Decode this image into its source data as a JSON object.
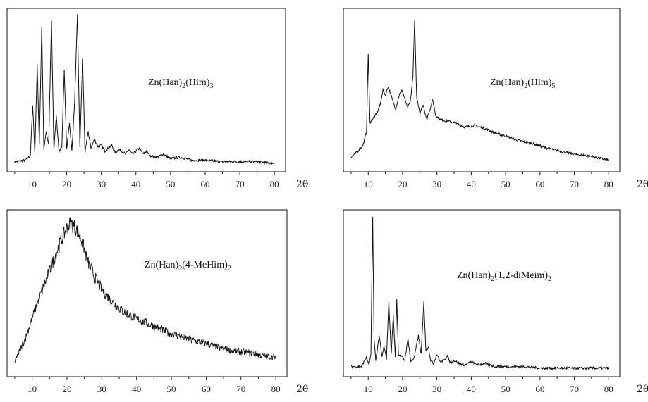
{
  "chart_data": [
    {
      "type": "line",
      "annotation": {
        "formula": "Zn(Han)",
        "subs": [
          "2",
          "3"
        ],
        "parts": [
          "(Him)"
        ]
      },
      "xlabel": "2θ",
      "xlim": [
        4,
        82
      ],
      "ylim": [
        0,
        100
      ],
      "xticks": [
        10,
        20,
        30,
        40,
        50,
        60,
        70,
        80
      ],
      "x": [
        5,
        8,
        9.5,
        10.2,
        10.8,
        11.5,
        12.1,
        12.8,
        13.4,
        14.1,
        14.8,
        15.6,
        16.3,
        17.0,
        17.8,
        18.6,
        19.3,
        20.0,
        20.8,
        21.5,
        22.3,
        23.1,
        23.8,
        24.6,
        25.3,
        26.2,
        27.0,
        28.0,
        29.0,
        30.0,
        31.0,
        32.0,
        33.0,
        34.0,
        35.0,
        36.0,
        37.0,
        38.0,
        39.0,
        40.0,
        41.0,
        42.0,
        43.0,
        44.0,
        46.0,
        48.0,
        50.0,
        53.0,
        56.0,
        60.0,
        65.0,
        70.0,
        75.0,
        80.0
      ],
      "y": [
        2,
        3,
        6,
        40,
        8,
        66,
        14,
        91,
        10,
        22,
        13,
        96,
        10,
        32,
        9,
        12,
        63,
        10,
        28,
        9,
        42,
        99,
        12,
        70,
        8,
        22,
        11,
        17,
        12,
        13,
        9,
        11,
        13,
        8,
        10,
        9,
        7,
        10,
        7,
        9,
        11,
        7,
        9,
        6,
        5,
        7,
        4,
        5,
        3,
        3,
        2,
        2,
        2,
        1
      ]
    },
    {
      "type": "line",
      "annotation": {
        "formula": "Zn(Han)",
        "subs": [
          "2",
          "5"
        ],
        "parts": [
          "(Him)"
        ]
      },
      "xlabel": "2θ",
      "xlim": [
        4,
        82
      ],
      "ylim": [
        0,
        100
      ],
      "xticks": [
        10,
        20,
        30,
        40,
        50,
        60,
        70,
        80
      ],
      "x": [
        5,
        7,
        8.5,
        9.5,
        10.0,
        10.5,
        11.5,
        12.5,
        13.5,
        14.3,
        15.0,
        15.8,
        16.4,
        17.2,
        18.0,
        19.0,
        19.8,
        20.6,
        21.4,
        22.2,
        23.0,
        23.5,
        24.1,
        25.0,
        26.0,
        27.0,
        28.0,
        28.8,
        29.6,
        31.0,
        33.0,
        35.0,
        38.0,
        41.0,
        44.0,
        47.0,
        50.0,
        54.0,
        58.0,
        62.0,
        66.0,
        70.0,
        74.0,
        78.0,
        80.0
      ],
      "y": [
        5,
        9,
        13,
        22,
        74,
        28,
        31,
        34,
        40,
        50,
        46,
        52,
        48,
        42,
        37,
        46,
        50,
        44,
        38,
        41,
        58,
        96,
        45,
        34,
        40,
        30,
        37,
        43,
        33,
        30,
        29,
        28,
        25,
        26,
        24,
        21,
        19,
        16,
        14,
        11,
        9,
        7,
        6,
        4,
        3
      ]
    },
    {
      "type": "line",
      "annotation": {
        "formula": "Zn(Han)",
        "subs": [
          "2",
          "2"
        ],
        "parts": [
          "(4-MeHim)"
        ]
      },
      "xlabel": "2θ",
      "xlim": [
        4,
        82
      ],
      "ylim": [
        0,
        100
      ],
      "xticks": [
        10,
        20,
        30,
        40,
        50,
        60,
        70,
        80
      ],
      "x": [
        5,
        8,
        11,
        14,
        16,
        18,
        20,
        21,
        22,
        23,
        24,
        25,
        26,
        28,
        30,
        33,
        36,
        40,
        44,
        48,
        52,
        56,
        60,
        64,
        68,
        72,
        76,
        80
      ],
      "y": [
        5,
        20,
        40,
        58,
        70,
        82,
        92,
        95,
        93,
        90,
        85,
        78,
        70,
        60,
        52,
        44,
        38,
        33,
        29,
        25,
        22,
        19,
        17,
        14,
        12,
        11,
        9,
        8
      ]
    },
    {
      "type": "line",
      "annotation": {
        "formula": "Zn(Han)",
        "subs": [
          "2",
          "2"
        ],
        "parts": [
          "(1,2-diMeim)"
        ]
      },
      "xlabel": "2θ",
      "xlim": [
        4,
        82
      ],
      "ylim": [
        0,
        100
      ],
      "xticks": [
        10,
        20,
        30,
        40,
        50,
        60,
        70,
        80
      ],
      "x": [
        5,
        8,
        9.5,
        10.2,
        10.8,
        11.3,
        11.7,
        12.2,
        13.2,
        14.0,
        14.6,
        15.3,
        16.0,
        16.7,
        17.3,
        17.9,
        18.3,
        18.8,
        19.6,
        20.6,
        21.6,
        22.4,
        23.4,
        24.6,
        25.4,
        26.2,
        26.8,
        27.5,
        28.2,
        29.0,
        30.0,
        31.0,
        32.0,
        33.0,
        34.0,
        35.0,
        36.5,
        38.0,
        40.0,
        42.0,
        44.0,
        47.0,
        50.0,
        55.0,
        60.0,
        65.0,
        70.0,
        75.0,
        80.0
      ],
      "y": [
        2,
        2,
        8,
        3,
        10,
        99,
        20,
        6,
        22,
        8,
        15,
        7,
        44,
        10,
        35,
        8,
        46,
        10,
        9,
        6,
        20,
        5,
        8,
        22,
        10,
        44,
        12,
        15,
        6,
        4,
        10,
        5,
        6,
        9,
        4,
        6,
        4,
        3,
        5,
        3,
        4,
        2,
        2,
        2,
        1,
        1,
        1,
        1,
        1
      ]
    }
  ]
}
